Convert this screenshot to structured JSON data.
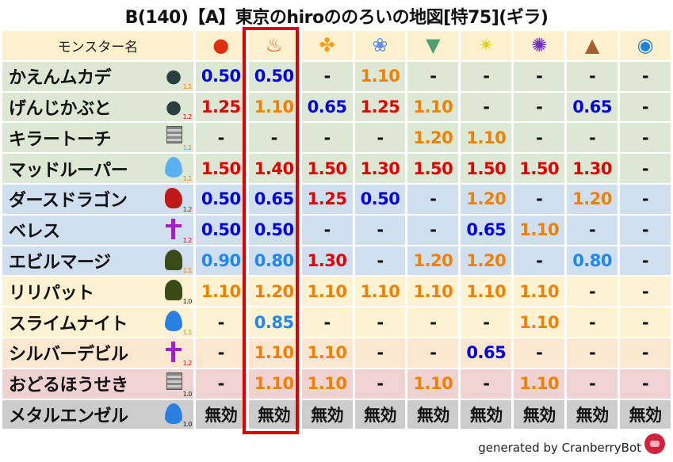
{
  "title": "B(140)【A】東京のhiroののろいの地図[特75](ギラ)",
  "header": {
    "name_label": "モンスター名"
  },
  "elements": [
    {
      "icon": "fireball-icon",
      "glyph": "●",
      "color": "#e03010"
    },
    {
      "icon": "flame-icon",
      "glyph": "♨",
      "color": "#f05020"
    },
    {
      "icon": "explosion-icon",
      "glyph": "✤",
      "color": "#f0a020"
    },
    {
      "icon": "ice-icon",
      "glyph": "❀",
      "color": "#6090f0"
    },
    {
      "icon": "wind-icon",
      "glyph": "▼",
      "color": "#50a070"
    },
    {
      "icon": "light-icon",
      "glyph": "✴",
      "color": "#d8d020"
    },
    {
      "icon": "dark-icon",
      "glyph": "✺",
      "color": "#7030c0"
    },
    {
      "icon": "earth-icon",
      "glyph": "▲",
      "color": "#a06030"
    },
    {
      "icon": "water-icon",
      "glyph": "◉",
      "color": "#2080e0"
    }
  ],
  "value_colors": {
    "weak": "#0000e0",
    "resist_light": "#1e88f0",
    "mid": "#f08000",
    "strong": "#e00000",
    "immune": "#111111"
  },
  "level_colors": {
    "1.0": "#111111",
    "1.1": "#f08000",
    "1.2": "#e00000"
  },
  "row_colors": {
    "green": "#dce8d4",
    "blue": "#d0dff0",
    "yellow": "#fdf2d2",
    "peach": "#fbe7cf",
    "pink": "#f0d2d2",
    "gray": "#cccccc",
    "header": "#fdf0cc"
  },
  "highlight_color": "#e00000",
  "rows": [
    {
      "name": "かえんムカデ",
      "icon": "bug-icon",
      "level": "1.1",
      "bg": "green",
      "values": [
        "0.50",
        "0.50",
        "-",
        "1.10",
        "-",
        "-",
        "-",
        "-",
        "-"
      ]
    },
    {
      "name": "げんじかぶと",
      "icon": "bug-icon",
      "level": "1.2",
      "bg": "green",
      "values": [
        "1.25",
        "1.10",
        "0.65",
        "1.25",
        "1.10",
        "-",
        "-",
        "0.65",
        "-"
      ]
    },
    {
      "name": "キラートーチ",
      "icon": "material-icon",
      "level": "1.1",
      "bg": "green",
      "values": [
        "-",
        "-",
        "-",
        "-",
        "1.20",
        "1.10",
        "-",
        "-",
        "-"
      ]
    },
    {
      "name": "マッドルーパー",
      "icon": "water-drop-icon",
      "level": "1.1",
      "bg": "green",
      "values": [
        "1.50",
        "1.40",
        "1.50",
        "1.30",
        "1.50",
        "1.50",
        "1.50",
        "1.30",
        "-"
      ]
    },
    {
      "name": "ダースドラゴン",
      "icon": "dragon-icon",
      "level": "1.2",
      "bg": "blue",
      "values": [
        "0.50",
        "0.65",
        "1.25",
        "0.50",
        "-",
        "1.20",
        "-",
        "1.20",
        "-"
      ]
    },
    {
      "name": "ベレス",
      "icon": "devil-icon",
      "level": "1.2",
      "bg": "blue",
      "values": [
        "0.50",
        "0.50",
        "-",
        "-",
        "-",
        "0.65",
        "1.10",
        "-",
        "-"
      ]
    },
    {
      "name": "エビルマージ",
      "icon": "zombie-icon",
      "level": "1.1",
      "bg": "blue",
      "values": [
        "0.90",
        "0.80",
        "1.30",
        "-",
        "1.20",
        "1.20",
        "-",
        "0.80",
        "-"
      ]
    },
    {
      "name": "リリパット",
      "icon": "zombie-icon",
      "level": "1.0",
      "bg": "yellow",
      "values": [
        "1.10",
        "1.20",
        "1.10",
        "1.10",
        "1.10",
        "1.10",
        "1.10",
        "-",
        "-"
      ]
    },
    {
      "name": "スライムナイト",
      "icon": "slime-icon",
      "level": "1.1",
      "bg": "yellow",
      "values": [
        "-",
        "0.85",
        "-",
        "-",
        "-",
        "-",
        "1.10",
        "-",
        "-"
      ]
    },
    {
      "name": "シルバーデビル",
      "icon": "devil-icon",
      "level": "1.2",
      "bg": "peach",
      "values": [
        "-",
        "1.10",
        "1.10",
        "-",
        "-",
        "0.65",
        "-",
        "-",
        "-"
      ]
    },
    {
      "name": "おどるほうせき",
      "icon": "material-icon",
      "level": "1.0",
      "bg": "pink",
      "values": [
        "-",
        "1.10",
        "1.10",
        "-",
        "1.10",
        "-",
        "1.10",
        "-",
        "-"
      ]
    },
    {
      "name": "メタルエンゼル",
      "icon": "slime-icon",
      "level": "1.0",
      "bg": "gray",
      "values": [
        "無効",
        "無効",
        "無効",
        "無効",
        "無効",
        "無効",
        "無効",
        "無効",
        "無効"
      ]
    }
  ],
  "footer": "generated by CranberryBot"
}
